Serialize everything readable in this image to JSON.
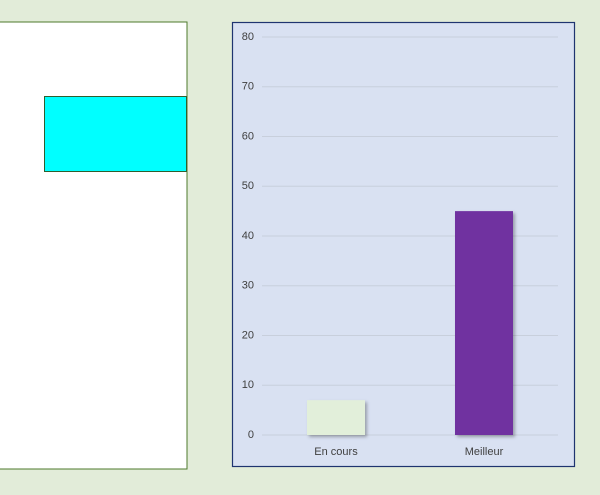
{
  "chart_data": {
    "type": "bar",
    "categories": [
      "En cours",
      "Meilleur"
    ],
    "values": [
      7,
      45
    ],
    "colors": [
      "#e2efda",
      "#7030a0"
    ],
    "ylim": [
      0,
      80
    ],
    "yticks": [
      0,
      10,
      20,
      30,
      40,
      50,
      60,
      70,
      80
    ],
    "grid": true
  }
}
